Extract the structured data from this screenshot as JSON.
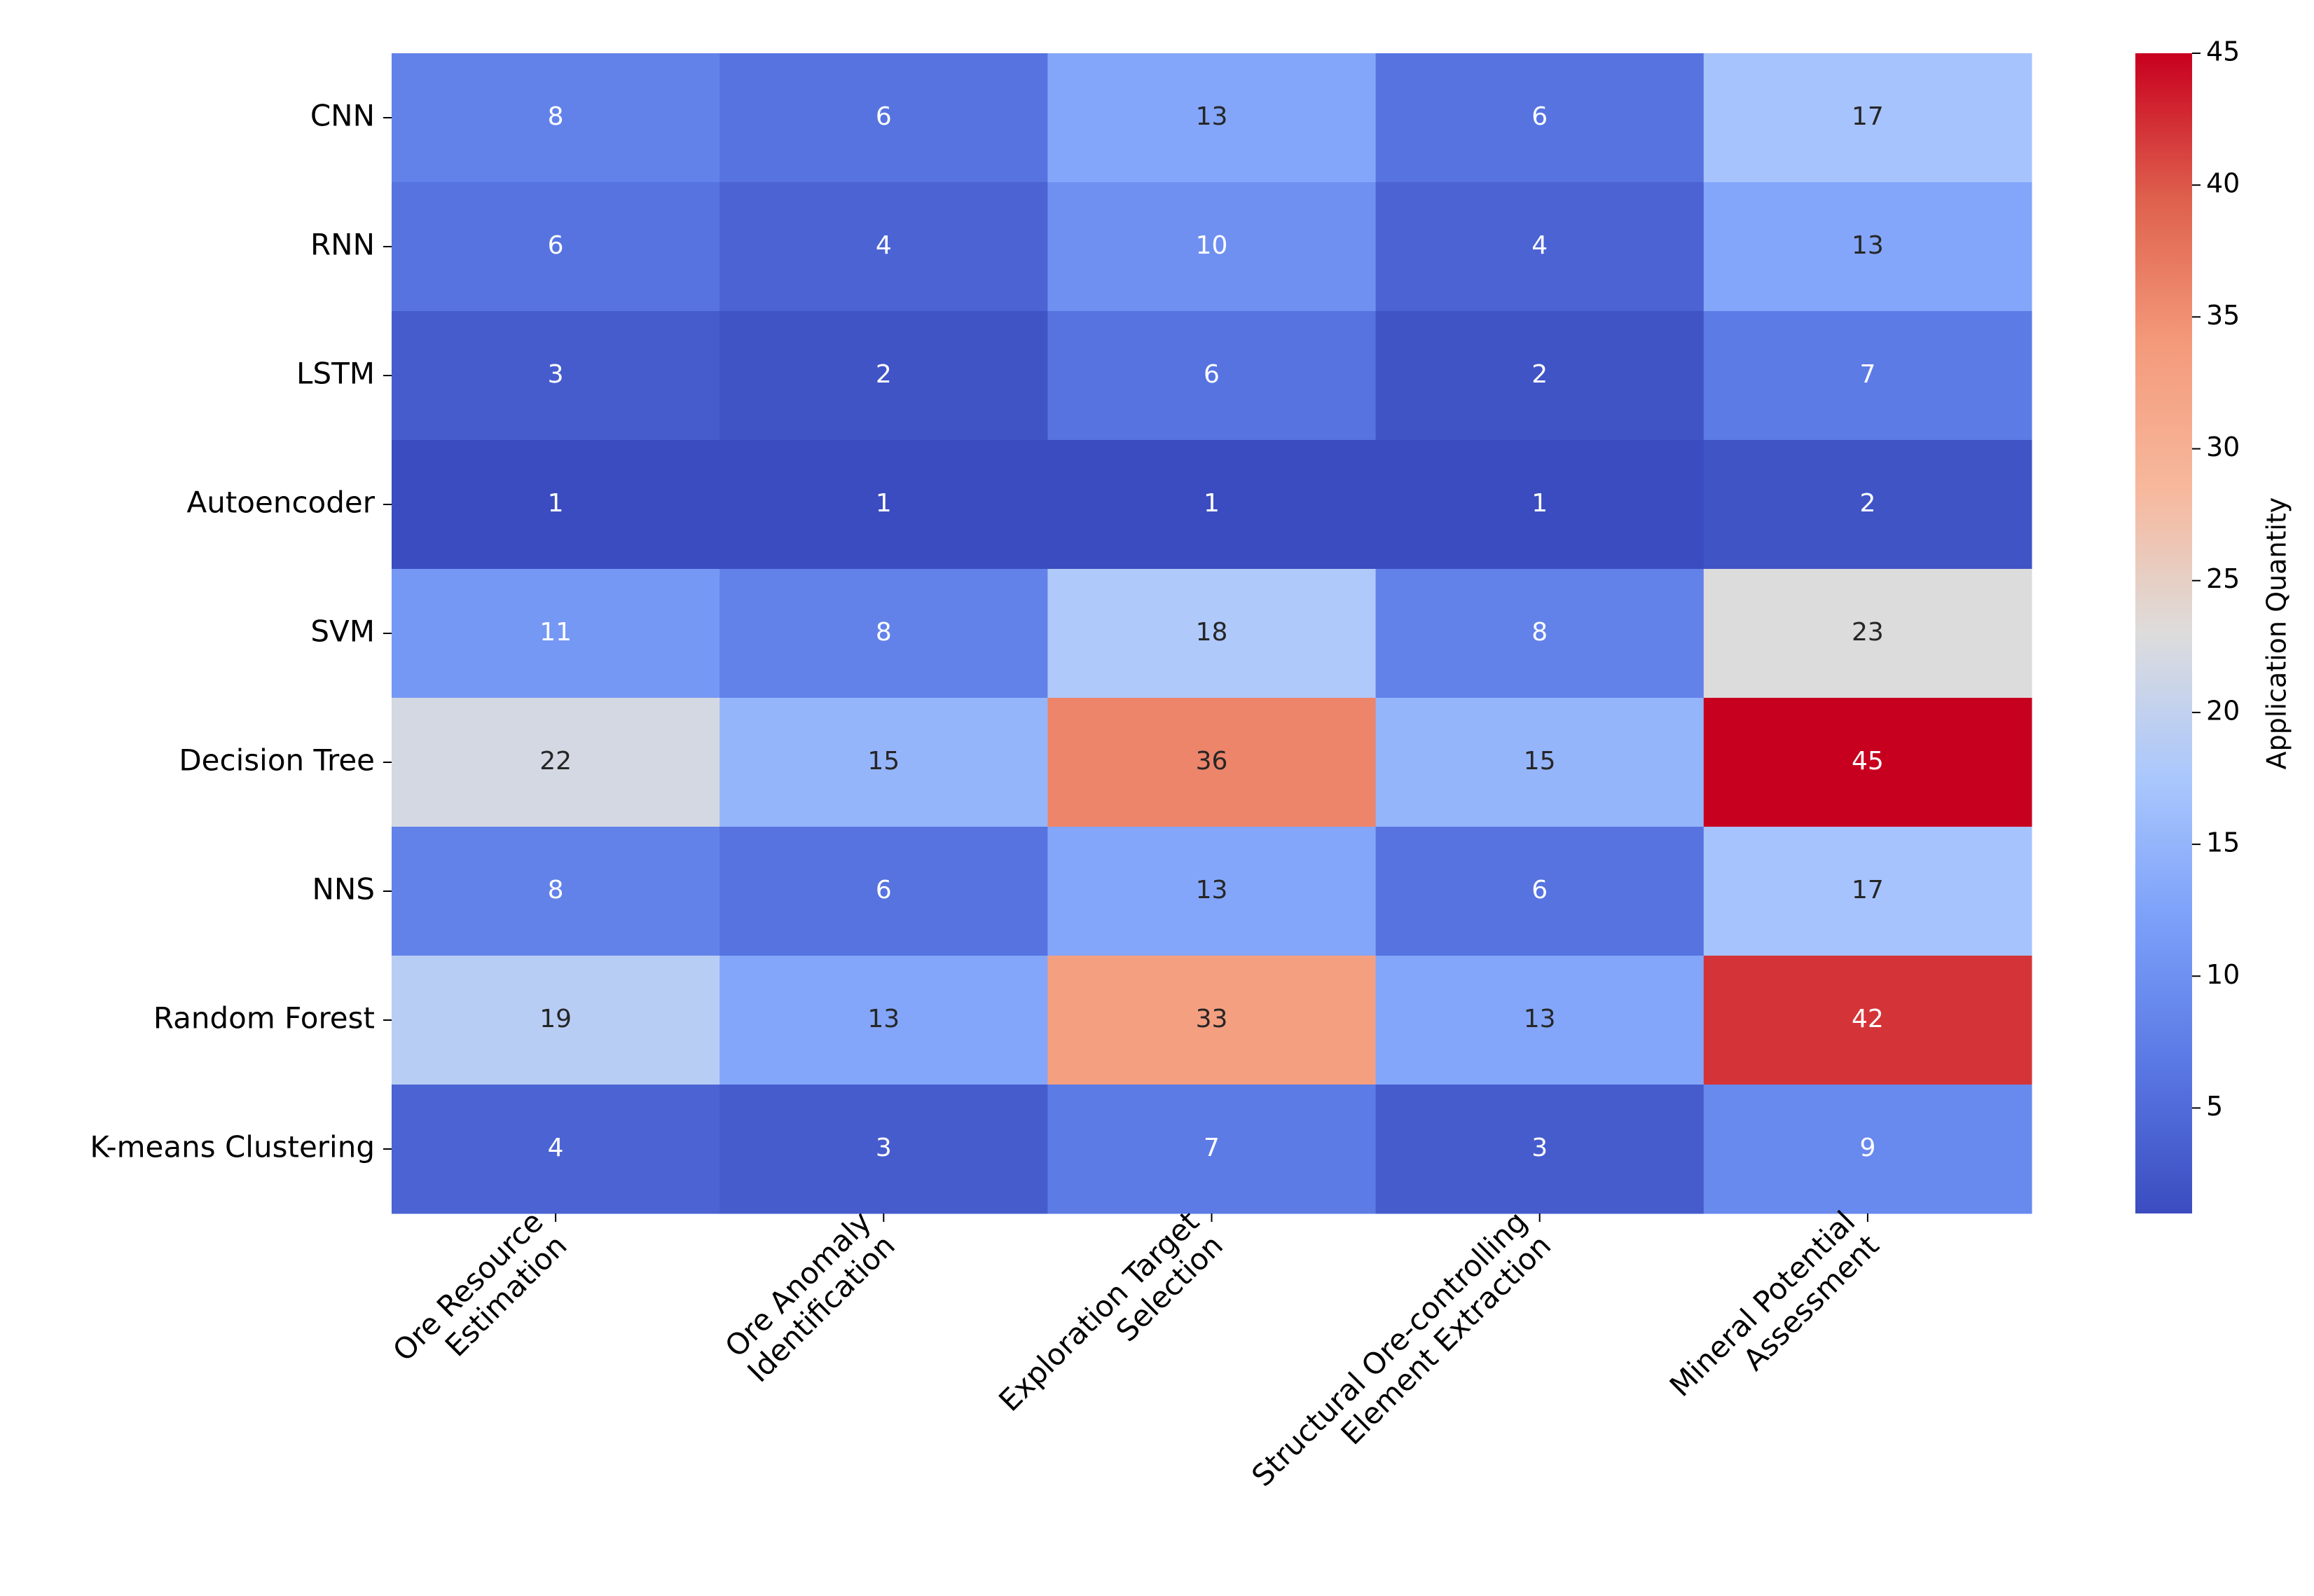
{
  "chart_data": {
    "type": "heatmap",
    "x": [
      [
        "Ore Resource",
        "Estimation"
      ],
      [
        "Ore Anomaly",
        "Identification"
      ],
      [
        "Exploration Target",
        "Selection"
      ],
      [
        "Structural Ore-controlling",
        "Element Extraction"
      ],
      [
        "Mineral Potential",
        "Assessment"
      ]
    ],
    "y": [
      "CNN",
      "RNN",
      "LSTM",
      "Autoencoder",
      "SVM",
      "Decision Tree",
      "NNS",
      "Random Forest",
      "K-means Clustering"
    ],
    "values": [
      [
        8,
        6,
        13,
        6,
        17
      ],
      [
        6,
        4,
        10,
        4,
        13
      ],
      [
        3,
        2,
        6,
        2,
        7
      ],
      [
        1,
        1,
        1,
        1,
        2
      ],
      [
        11,
        8,
        18,
        8,
        23
      ],
      [
        22,
        15,
        36,
        15,
        45
      ],
      [
        8,
        6,
        13,
        6,
        17
      ],
      [
        19,
        13,
        33,
        13,
        42
      ],
      [
        4,
        3,
        7,
        3,
        9
      ]
    ],
    "colorbar_label": "Application Quantity",
    "clim": [
      1,
      45
    ],
    "cticks": [
      5,
      10,
      15,
      20,
      25,
      30,
      35,
      40,
      45
    ],
    "colormap": [
      "#3b4cc0",
      "#5977e3",
      "#7b9ff9",
      "#aac7fd",
      "#dddcdc",
      "#f7b89c",
      "#f49a7b",
      "#de604d",
      "#c8001f"
    ]
  }
}
